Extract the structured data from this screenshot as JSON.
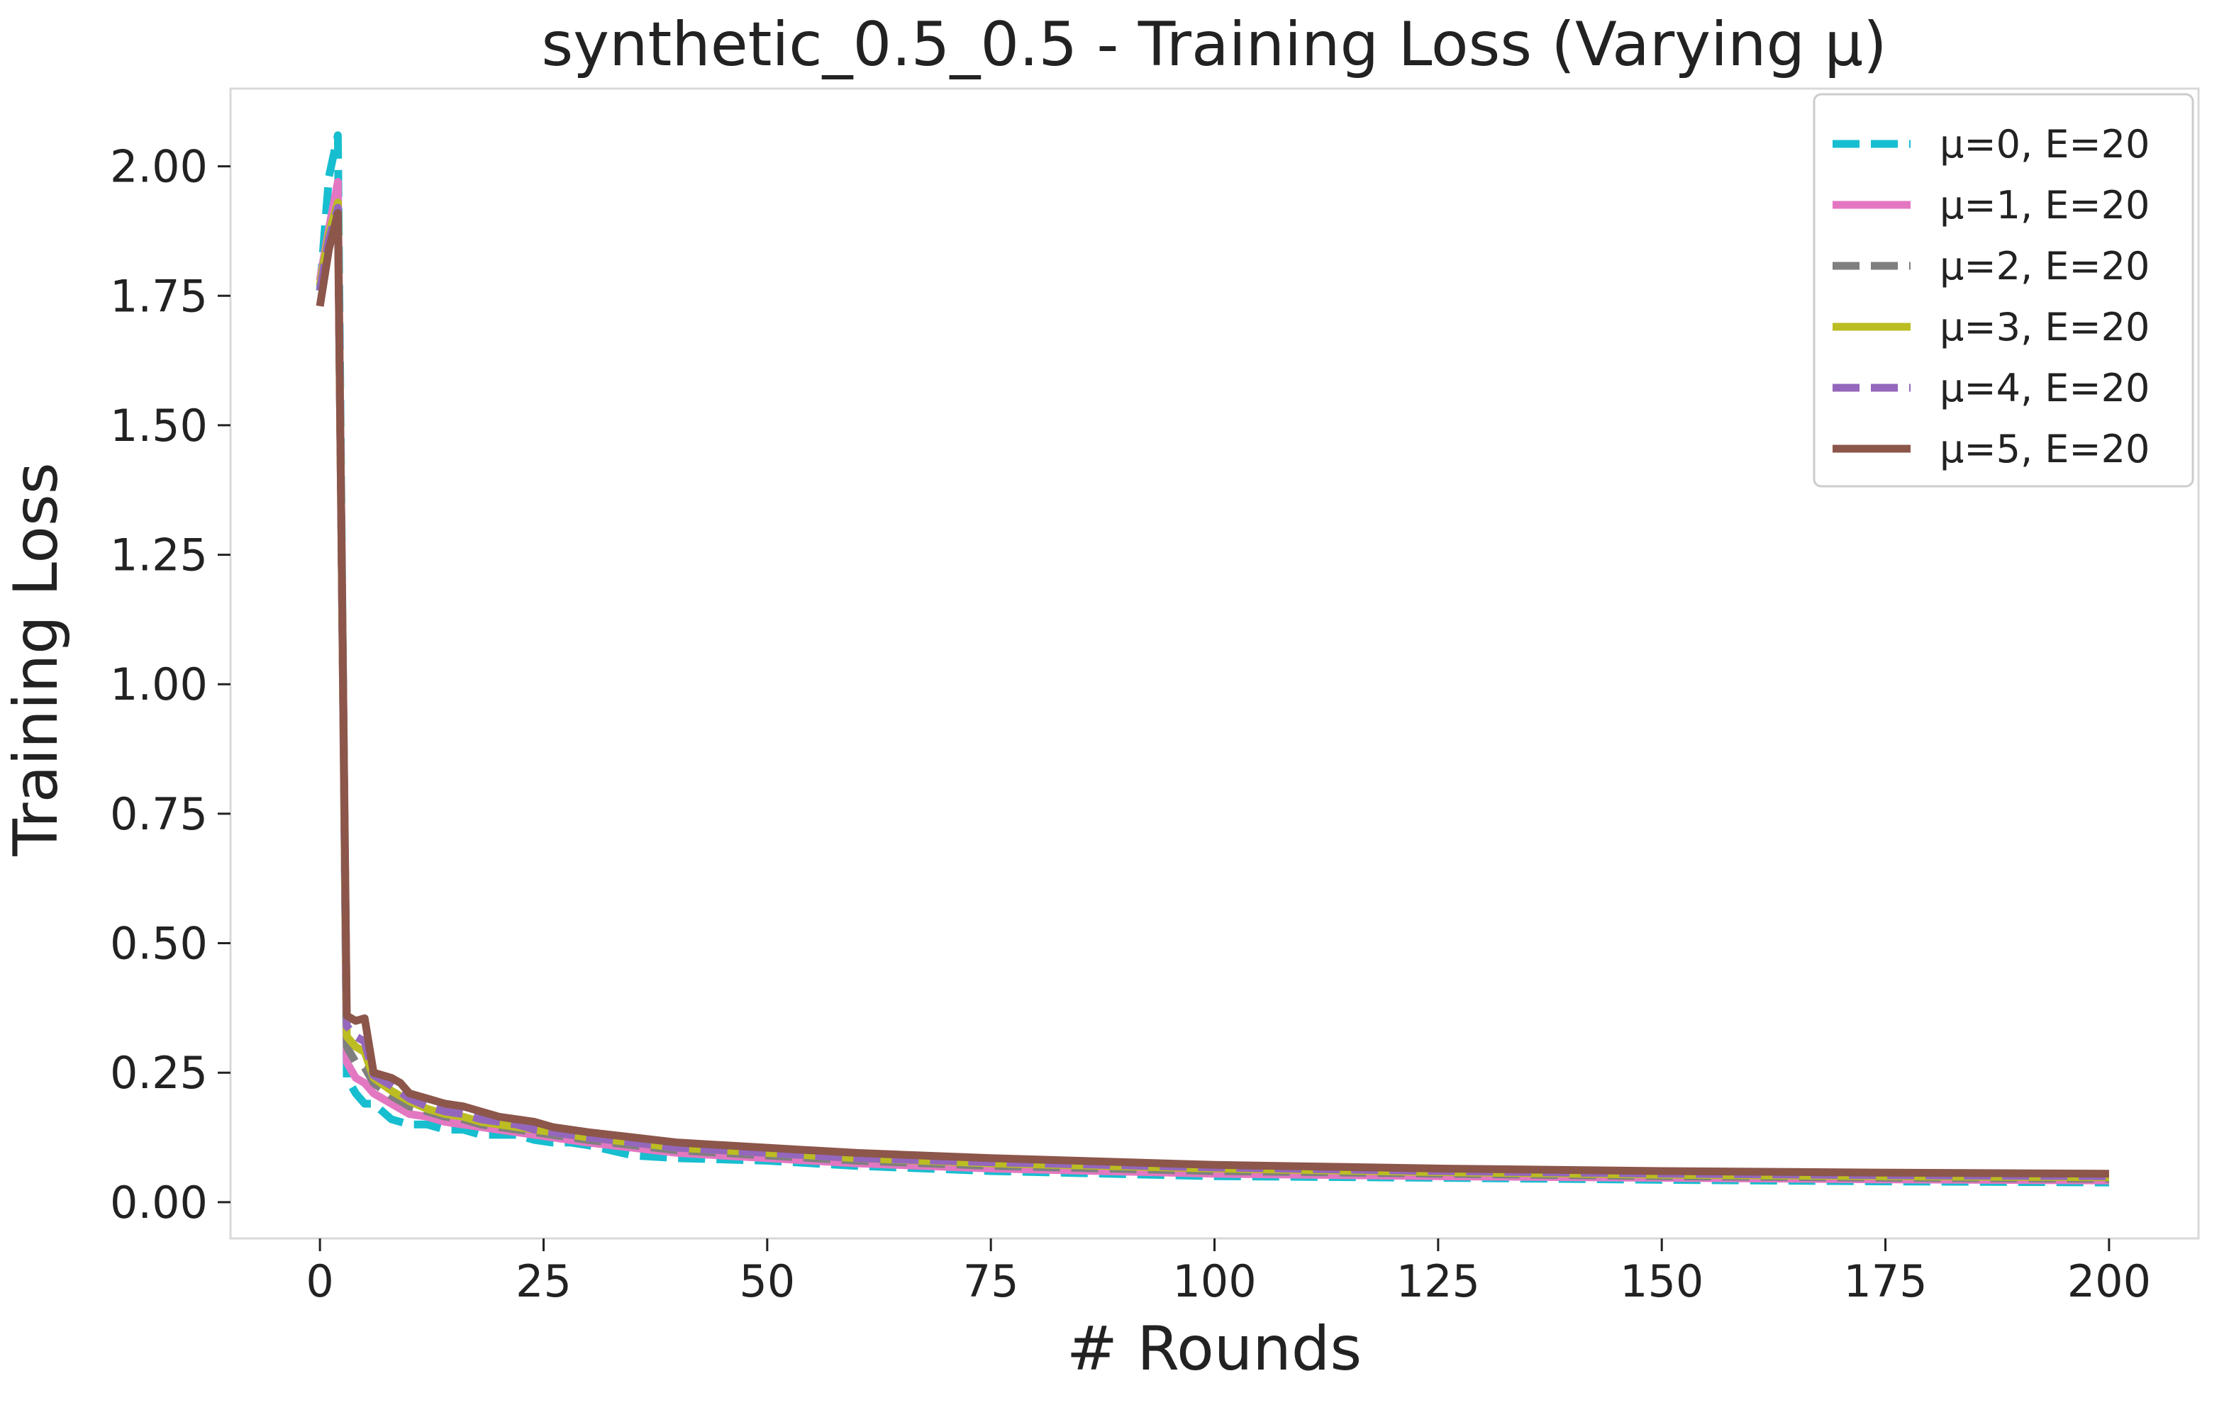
{
  "chart_data": {
    "type": "line",
    "title": "synthetic_0.5_0.5 - Training Loss (Varying μ)",
    "xlabel": "# Rounds",
    "ylabel": "Training Loss",
    "xlim": [
      -10,
      210
    ],
    "ylim": [
      -0.07,
      2.15
    ],
    "xticks": [
      0,
      25,
      50,
      75,
      100,
      125,
      150,
      175,
      200
    ],
    "xtick_labels": [
      "0",
      "25",
      "50",
      "75",
      "100",
      "125",
      "150",
      "175",
      "200"
    ],
    "yticks": [
      0.0,
      0.25,
      0.5,
      0.75,
      1.0,
      1.25,
      1.5,
      1.75,
      2.0
    ],
    "ytick_labels": [
      "0.00",
      "0.25",
      "0.50",
      "0.75",
      "1.00",
      "1.25",
      "1.50",
      "1.75",
      "2.00"
    ],
    "grid": false,
    "legend_position": "top-right",
    "series": [
      {
        "name": "μ=0, E=20",
        "color": "#17becf",
        "dash": "dashed",
        "points": [
          [
            0,
            1.76
          ],
          [
            1,
            1.98
          ],
          [
            2,
            2.06
          ],
          [
            3,
            0.24
          ],
          [
            4,
            0.21
          ],
          [
            5,
            0.19
          ],
          [
            6,
            0.19
          ],
          [
            8,
            0.16
          ],
          [
            10,
            0.15
          ],
          [
            12,
            0.15
          ],
          [
            14,
            0.14
          ],
          [
            16,
            0.14
          ],
          [
            18,
            0.13
          ],
          [
            20,
            0.13
          ],
          [
            22,
            0.13
          ],
          [
            24,
            0.12
          ],
          [
            26,
            0.115
          ],
          [
            28,
            0.115
          ],
          [
            30,
            0.11
          ],
          [
            35,
            0.09
          ],
          [
            40,
            0.085
          ],
          [
            50,
            0.08
          ],
          [
            60,
            0.07
          ],
          [
            75,
            0.06
          ],
          [
            100,
            0.05
          ],
          [
            125,
            0.047
          ],
          [
            150,
            0.043
          ],
          [
            175,
            0.04
          ],
          [
            200,
            0.038
          ]
        ]
      },
      {
        "name": "μ=1, E=20",
        "color": "#e377c2",
        "dash": "solid",
        "points": [
          [
            0,
            1.78
          ],
          [
            1,
            1.88
          ],
          [
            2,
            1.97
          ],
          [
            3,
            0.27
          ],
          [
            4,
            0.24
          ],
          [
            5,
            0.23
          ],
          [
            6,
            0.21
          ],
          [
            8,
            0.19
          ],
          [
            10,
            0.17
          ],
          [
            12,
            0.165
          ],
          [
            14,
            0.155
          ],
          [
            16,
            0.15
          ],
          [
            18,
            0.145
          ],
          [
            20,
            0.14
          ],
          [
            22,
            0.135
          ],
          [
            24,
            0.13
          ],
          [
            26,
            0.125
          ],
          [
            28,
            0.12
          ],
          [
            30,
            0.115
          ],
          [
            35,
            0.105
          ],
          [
            40,
            0.095
          ],
          [
            50,
            0.085
          ],
          [
            60,
            0.075
          ],
          [
            75,
            0.065
          ],
          [
            100,
            0.055
          ],
          [
            125,
            0.05
          ],
          [
            150,
            0.047
          ],
          [
            175,
            0.044
          ],
          [
            200,
            0.042
          ]
        ]
      },
      {
        "name": "μ=2, E=20",
        "color": "#7f7f7f",
        "dash": "dashed",
        "points": [
          [
            0,
            1.77
          ],
          [
            1,
            1.87
          ],
          [
            2,
            1.93
          ],
          [
            3,
            0.3
          ],
          [
            4,
            0.27
          ],
          [
            5,
            0.26
          ],
          [
            6,
            0.23
          ],
          [
            8,
            0.205
          ],
          [
            10,
            0.185
          ],
          [
            12,
            0.175
          ],
          [
            14,
            0.165
          ],
          [
            16,
            0.16
          ],
          [
            18,
            0.15
          ],
          [
            20,
            0.145
          ],
          [
            22,
            0.14
          ],
          [
            24,
            0.135
          ],
          [
            26,
            0.13
          ],
          [
            28,
            0.125
          ],
          [
            30,
            0.12
          ],
          [
            35,
            0.11
          ],
          [
            40,
            0.1
          ],
          [
            50,
            0.09
          ],
          [
            60,
            0.08
          ],
          [
            75,
            0.07
          ],
          [
            100,
            0.06
          ],
          [
            125,
            0.055
          ],
          [
            150,
            0.05
          ],
          [
            175,
            0.047
          ],
          [
            200,
            0.045
          ]
        ]
      },
      {
        "name": "μ=3, E=20",
        "color": "#bcbd22",
        "dash": "solid",
        "points": [
          [
            0,
            1.77
          ],
          [
            1,
            1.87
          ],
          [
            2,
            1.93
          ],
          [
            3,
            0.32
          ],
          [
            4,
            0.3
          ],
          [
            5,
            0.29
          ],
          [
            6,
            0.24
          ],
          [
            8,
            0.215
          ],
          [
            10,
            0.195
          ],
          [
            12,
            0.18
          ],
          [
            14,
            0.17
          ],
          [
            16,
            0.165
          ],
          [
            18,
            0.155
          ],
          [
            20,
            0.15
          ],
          [
            22,
            0.145
          ],
          [
            24,
            0.14
          ],
          [
            26,
            0.135
          ],
          [
            28,
            0.13
          ],
          [
            30,
            0.125
          ],
          [
            35,
            0.115
          ],
          [
            40,
            0.105
          ],
          [
            50,
            0.095
          ],
          [
            60,
            0.085
          ],
          [
            75,
            0.075
          ],
          [
            100,
            0.065
          ],
          [
            125,
            0.058
          ],
          [
            150,
            0.053
          ],
          [
            175,
            0.05
          ],
          [
            200,
            0.048
          ]
        ]
      },
      {
        "name": "μ=4, E=20",
        "color": "#9467bd",
        "dash": "dashed",
        "points": [
          [
            0,
            1.76
          ],
          [
            1,
            1.86
          ],
          [
            2,
            1.92
          ],
          [
            3,
            0.34
          ],
          [
            4,
            0.32
          ],
          [
            5,
            0.31
          ],
          [
            6,
            0.245
          ],
          [
            8,
            0.225
          ],
          [
            10,
            0.2
          ],
          [
            12,
            0.185
          ],
          [
            14,
            0.175
          ],
          [
            16,
            0.17
          ],
          [
            18,
            0.16
          ],
          [
            20,
            0.155
          ],
          [
            22,
            0.15
          ],
          [
            24,
            0.14
          ],
          [
            26,
            0.135
          ],
          [
            28,
            0.13
          ],
          [
            30,
            0.125
          ],
          [
            35,
            0.115
          ],
          [
            40,
            0.105
          ],
          [
            50,
            0.095
          ],
          [
            60,
            0.085
          ],
          [
            75,
            0.077
          ],
          [
            100,
            0.067
          ],
          [
            125,
            0.06
          ],
          [
            150,
            0.055
          ],
          [
            175,
            0.052
          ],
          [
            200,
            0.05
          ]
        ]
      },
      {
        "name": "μ=5, E=20",
        "color": "#8c564b",
        "dash": "solid",
        "points": [
          [
            0,
            1.73
          ],
          [
            1,
            1.84
          ],
          [
            2,
            1.91
          ],
          [
            3,
            0.36
          ],
          [
            4,
            0.35
          ],
          [
            5,
            0.355
          ],
          [
            6,
            0.25
          ],
          [
            8,
            0.24
          ],
          [
            9,
            0.23
          ],
          [
            10,
            0.21
          ],
          [
            12,
            0.2
          ],
          [
            14,
            0.19
          ],
          [
            16,
            0.185
          ],
          [
            18,
            0.175
          ],
          [
            20,
            0.165
          ],
          [
            22,
            0.16
          ],
          [
            24,
            0.155
          ],
          [
            26,
            0.145
          ],
          [
            28,
            0.14
          ],
          [
            30,
            0.135
          ],
          [
            35,
            0.125
          ],
          [
            40,
            0.115
          ],
          [
            50,
            0.105
          ],
          [
            60,
            0.095
          ],
          [
            75,
            0.085
          ],
          [
            100,
            0.072
          ],
          [
            125,
            0.065
          ],
          [
            150,
            0.06
          ],
          [
            175,
            0.057
          ],
          [
            200,
            0.055
          ]
        ]
      }
    ]
  }
}
